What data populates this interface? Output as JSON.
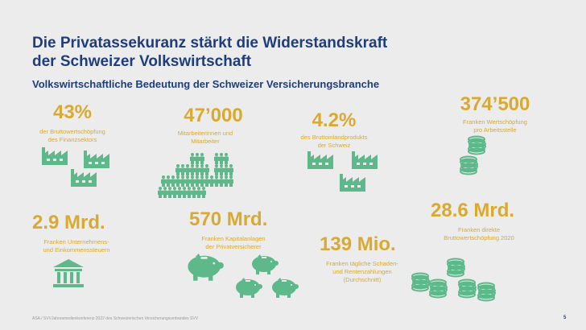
{
  "title_line1": "Die Privatassekuranz stärkt die Widerstandskraft",
  "title_line2": "der Schweizer Volkswirtschaft",
  "subtitle": "Volkswirtschaftliche Bedeutung der Schweizer Versicherungsbranche",
  "stats": [
    {
      "value": "43%",
      "line1": "der Bruttowertschöpfung",
      "line2": "des Finanzsektors"
    },
    {
      "value": "47’000",
      "line1": "Mitarbeiterinnen und",
      "line2": "Mitarbeiter"
    },
    {
      "value": "4.2%",
      "line1": "des Bruttoinlandprodukts",
      "line2": "der Schweiz"
    },
    {
      "value": "374’500",
      "line1": "Franken Wertschöpfung",
      "line2": "pro Arbeitsstelle"
    },
    {
      "value": "2.9 Mrd.",
      "line1": "Franken Unternehmens-",
      "line2": "und Einkommenssteuern"
    },
    {
      "value": "570 Mrd.",
      "line1": "Franken Kapitalanlagen",
      "line2": "der Privatversicherer"
    },
    {
      "value": "139 Mio.",
      "line1": "Franken tägliche Schaden-",
      "line2": "und Rentenzahlungen",
      "line3": "(Durchschnitt)"
    },
    {
      "value": "28.6 Mrd.",
      "line1": "Franken direkte",
      "line2": "Bruttowertschöpfung 2020"
    }
  ],
  "footer": {
    "left": "ASA / SVV",
    "center": "Jahresmedienkonferenz 2022 des Schweizerischen Versicherungsverbandes SVV",
    "page": "5"
  },
  "colors": {
    "title": "#1f3d7a",
    "accent": "#d9aa2f",
    "icon": "#5db88a",
    "background": "#ececec"
  }
}
